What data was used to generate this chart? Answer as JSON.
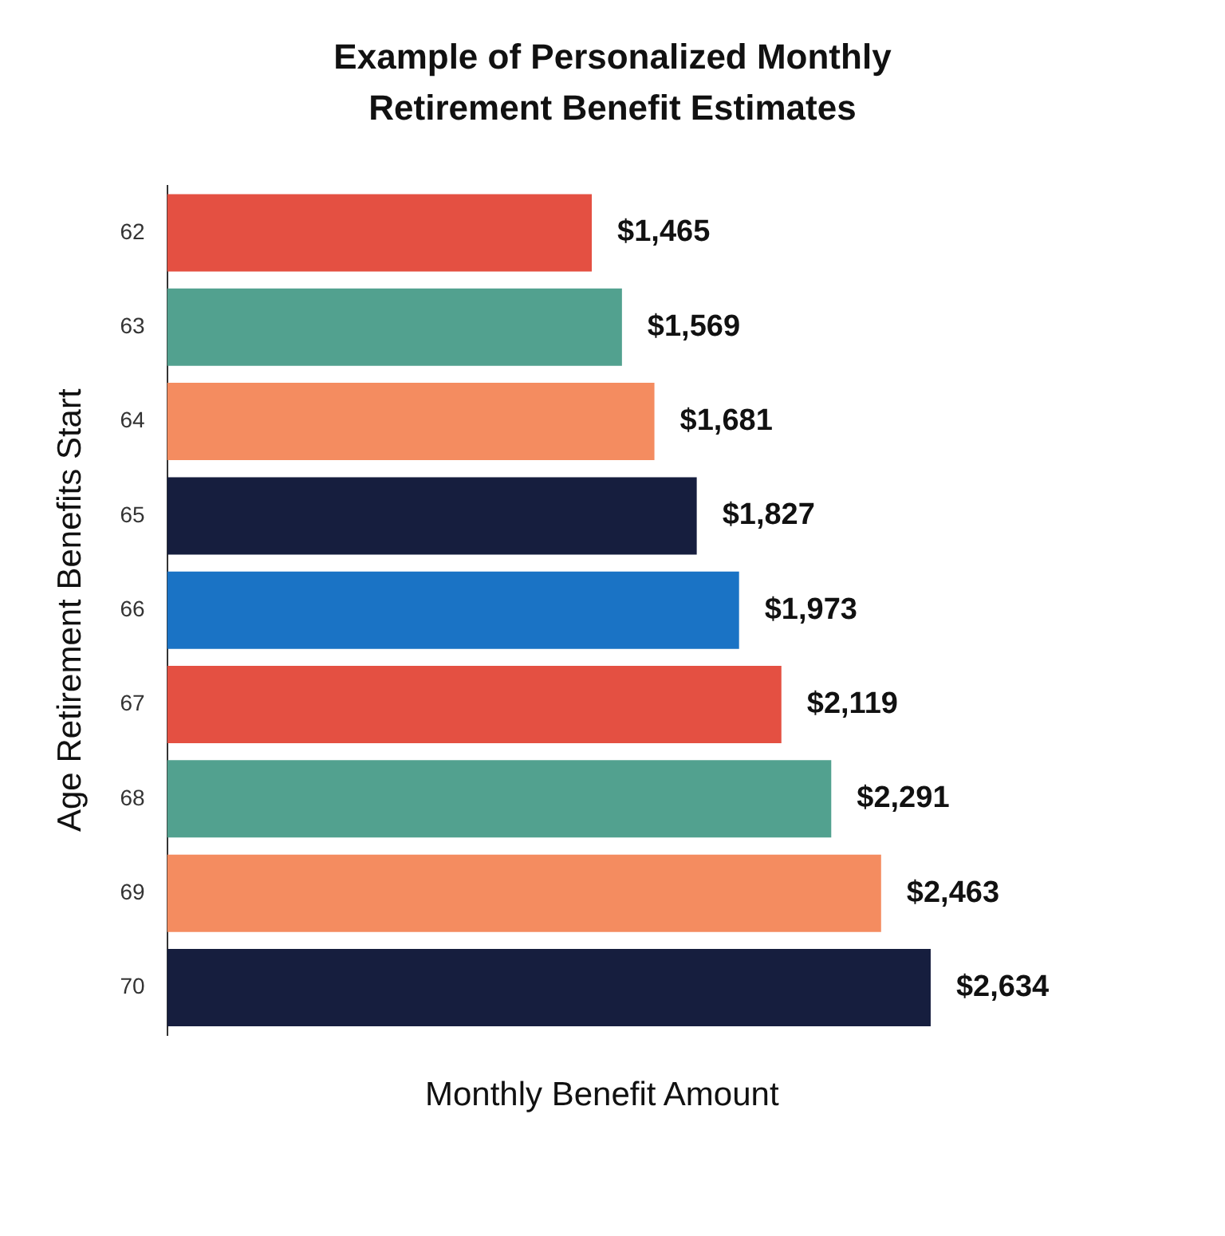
{
  "chart_data": {
    "type": "bar",
    "orientation": "horizontal",
    "title": "Example of Personalized Monthly Retirement Benefit Estimates",
    "xlabel": "Monthly Benefit Amount",
    "ylabel": "Age Retirement Benefits Start",
    "categories": [
      "62",
      "63",
      "64",
      "65",
      "66",
      "67",
      "68",
      "69",
      "70"
    ],
    "values": [
      1465,
      1569,
      1681,
      1827,
      1973,
      2119,
      2291,
      2463,
      2634
    ],
    "colors": [
      "#e45042",
      "#52a18f",
      "#f48c60",
      "#161e3e",
      "#1a73c5",
      "#e45042",
      "#52a18f",
      "#f48c60",
      "#161e3e"
    ],
    "value_labels": [
      "$1,465",
      "$1,569",
      "$1,681",
      "$1,827",
      "$1,973",
      "$2,119",
      "$2,291",
      "$2,463",
      "$2,634"
    ],
    "grid": false,
    "legend": false
  }
}
